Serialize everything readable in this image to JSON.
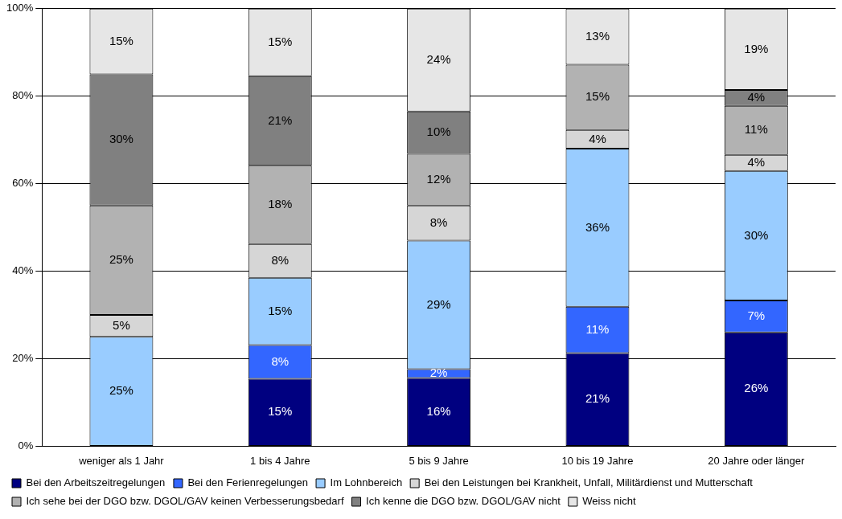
{
  "chart_data": {
    "type": "bar",
    "stacked": true,
    "categories": [
      "weniger als 1 Jahr",
      "1 bis 4 Jahre",
      "5 bis 9 Jahre",
      "10 bis 19 Jahre",
      "20 Jahre oder länger"
    ],
    "series": [
      {
        "name": "Bei den Arbeitszeitregelungen",
        "color": "#000080",
        "values": [
          null,
          15.4,
          15.6,
          21.3,
          26
        ],
        "value_labels": [
          null,
          "15%",
          "16%",
          "21%",
          "26%"
        ]
      },
      {
        "name": "Bei den Ferienregelungen",
        "color": "#3366ff",
        "values": [
          null,
          7.7,
          2,
          10.6,
          7.3
        ],
        "value_labels": [
          null,
          "8%",
          "2%",
          "11%",
          "7%"
        ]
      },
      {
        "name": "Im Lohnbereich",
        "color": "#99ccff",
        "values": [
          25,
          15.4,
          29.4,
          36.1,
          29.6
        ],
        "value_labels": [
          "25%",
          "15%",
          "29%",
          "36%",
          "30%"
        ]
      },
      {
        "name": "Bei den Leistungen bei Krankheit, Unfall, Militärdienst und Mutterschaft",
        "color": "#d6d6d6",
        "values": [
          5,
          7.7,
          8,
          4.3,
          3.7
        ],
        "value_labels": [
          "5%",
          "8%",
          "8%",
          "4%",
          "4%"
        ]
      },
      {
        "name": "Ich sehe bei der DGO bzw. DGOL/GAV keinen Verbesserungsbedarf",
        "color": "#b2b2b2",
        "values": [
          25,
          17.9,
          11.8,
          14.9,
          11.2
        ],
        "value_labels": [
          "25%",
          "18%",
          "12%",
          "15%",
          "11%"
        ]
      },
      {
        "name": "Ich kenne die DGO bzw. DGOL/GAV nicht",
        "color": "#808080",
        "values": [
          30,
          20.5,
          9.7,
          null,
          3.6
        ],
        "value_labels": [
          "30%",
          "21%",
          "10%",
          null,
          "4%"
        ]
      },
      {
        "name": "Weiss nicht",
        "color": "#e6e6e6",
        "values": [
          15,
          15.4,
          23.5,
          12.8,
          18.6
        ],
        "value_labels": [
          "15%",
          "15%",
          "24%",
          "13%",
          "19%"
        ]
      }
    ],
    "ylim": [
      0,
      100
    ],
    "yticks": [
      {
        "value": 0,
        "label": "0%"
      },
      {
        "value": 20,
        "label": "20%"
      },
      {
        "value": 40,
        "label": "40%"
      },
      {
        "value": 60,
        "label": "60%"
      },
      {
        "value": 80,
        "label": "80%"
      },
      {
        "value": 100,
        "label": "100%"
      }
    ],
    "grid": "y",
    "legend": "bottom"
  }
}
